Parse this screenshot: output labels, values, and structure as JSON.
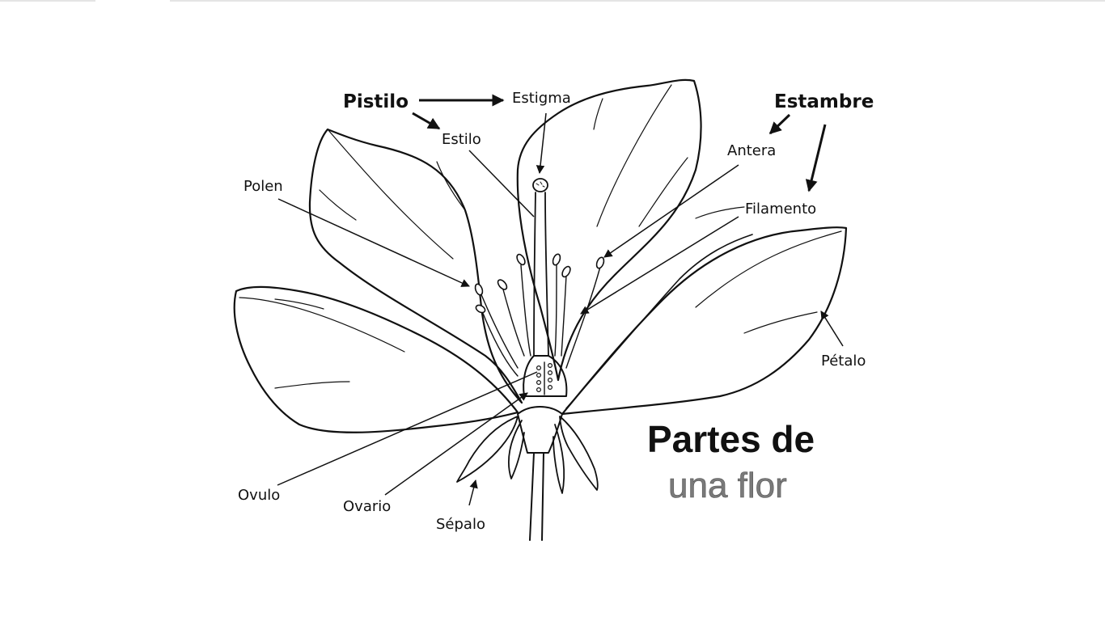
{
  "diagram": {
    "labels": {
      "pistilo": "Pistilo",
      "estigma": "Estigma",
      "estilo": "Estilo",
      "estambre": "Estambre",
      "antera": "Antera",
      "filamento": "Filamento",
      "polen": "Polen",
      "petalo": "Pétalo",
      "ovulo": "Ovulo",
      "ovario": "Ovario",
      "sepalo": "Sépalo"
    },
    "title": {
      "line1": "Partes de",
      "line2": "una flor"
    }
  }
}
